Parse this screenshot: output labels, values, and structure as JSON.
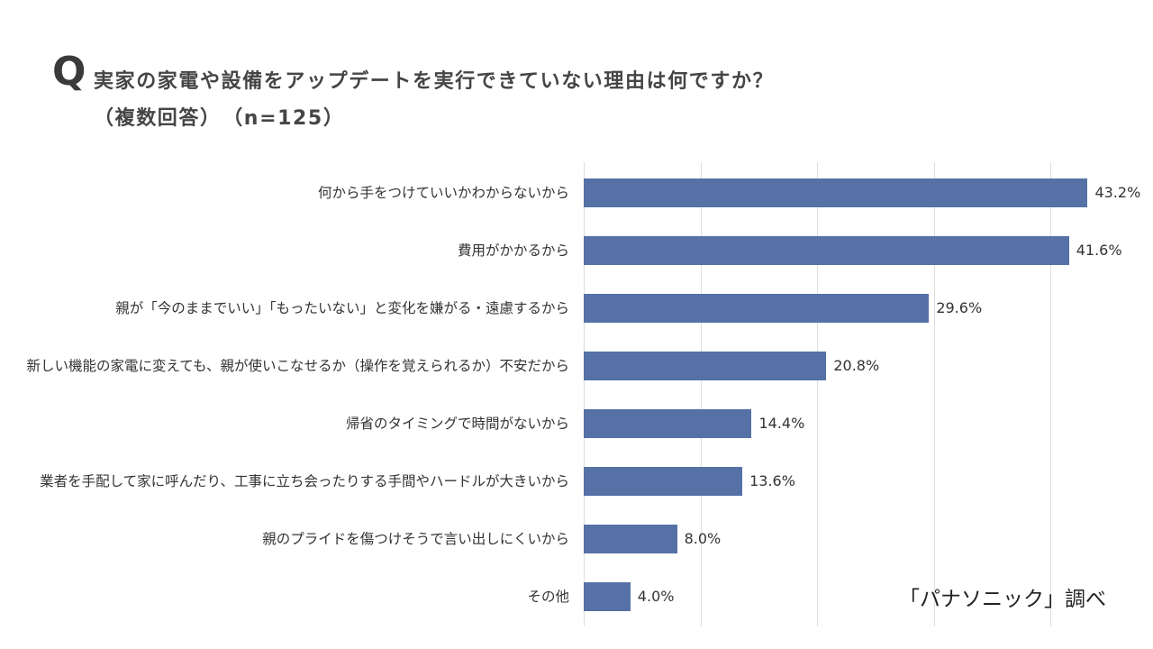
{
  "colors": {
    "bar": "#5571a6",
    "grid": "#dddddd",
    "text": "#333333"
  },
  "chart_data": {
    "type": "bar",
    "orientation": "horizontal",
    "title_prefix": "Q",
    "title": "実家の家電や設備をアップデートを実行できていない理由は何ですか？",
    "subtitle": "（複数回答）　（n=125）",
    "note": "「パナソニック」調べ",
    "unit": "%",
    "grid": true,
    "x_gridlines": [
      0,
      10,
      20,
      30,
      40
    ],
    "categories": [
      "何から手をつけていいかわからないから",
      "費用がかかるから",
      "親が「今のままでいい」「もったいない」と変化を嫌がる・遠慮するから",
      "新しい機能の家電に変えても、親が使いこなせるか（操作を覚えられるか）不安だから",
      "帰省のタイミングで時間がないから",
      "業者を手配して家に呼んだり、工事に立ち会ったりする手間やハードルが大きいから",
      "親のプライドを傷つけそうで言い出しにくいから",
      "その他"
    ],
    "values": [
      43.2,
      41.6,
      29.6,
      20.8,
      14.4,
      13.6,
      8.0,
      4.0
    ],
    "value_labels": [
      "43.2%",
      "41.6%",
      "29.6%",
      "20.8%",
      "14.4%",
      "13.6%",
      "8.0%",
      "4.0%"
    ]
  }
}
